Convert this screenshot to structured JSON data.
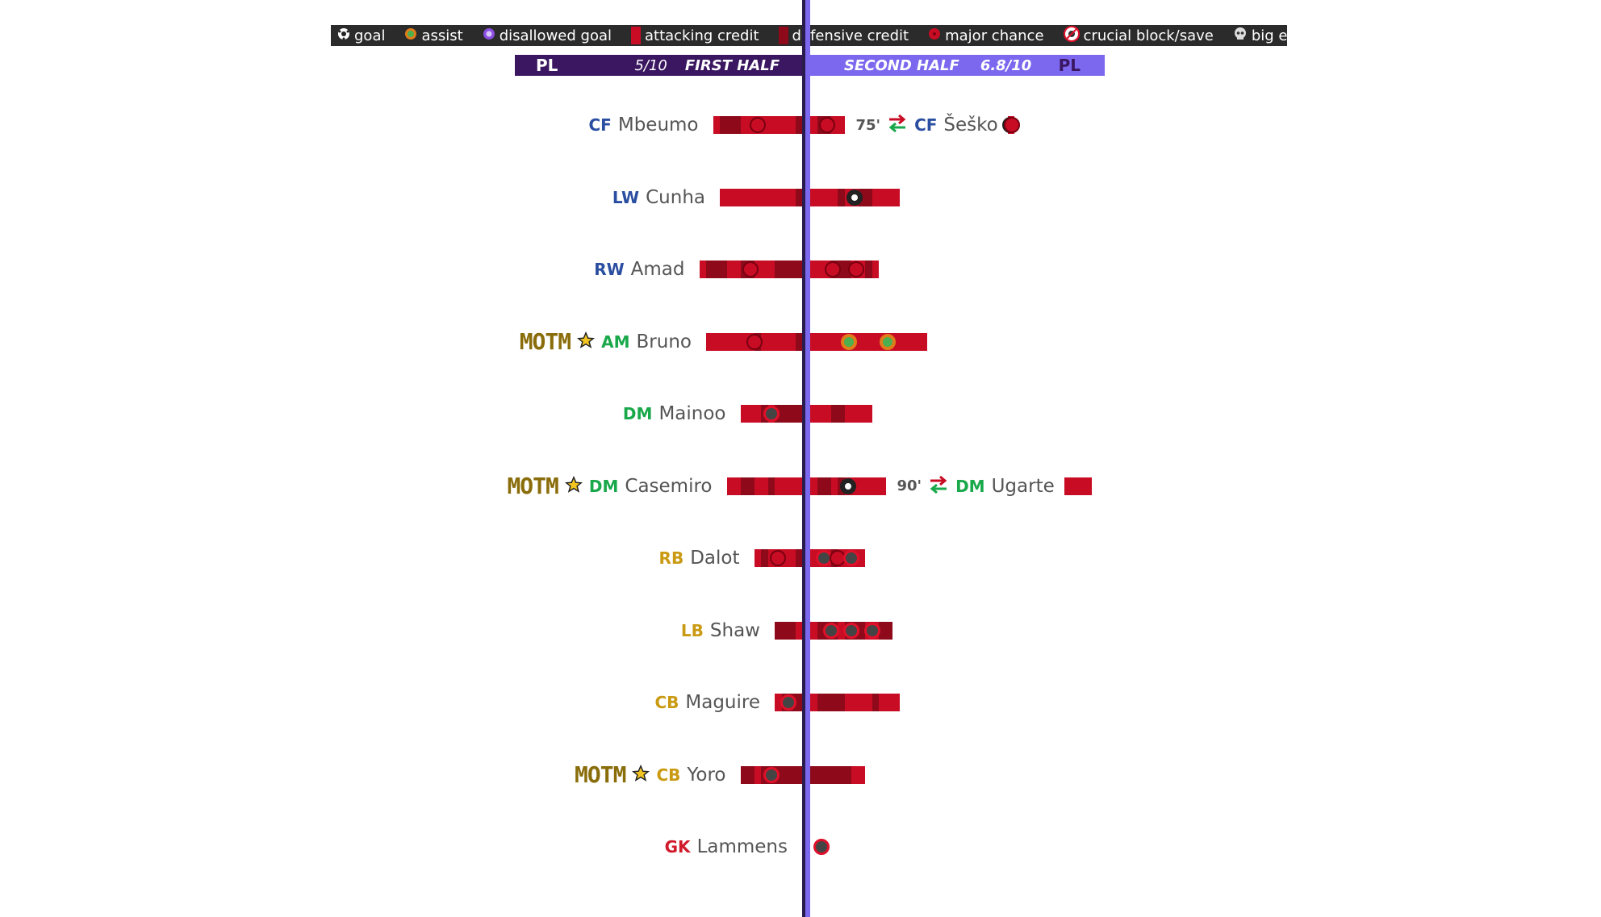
{
  "colors": {
    "attacking": "#c80c24",
    "defensive": "#8e0a1a",
    "header_left": "#3a1760",
    "header_right": "#7b68ee",
    "attack_pos": "#2a4ea0",
    "mid_pos": "#19a84a",
    "def_pos": "#c99a12",
    "gk_pos": "#d11a2a",
    "motm": "#8a6d0b"
  },
  "legend": [
    {
      "icon": "goal-icon",
      "label": "goal"
    },
    {
      "icon": "assist-icon",
      "label": "assist"
    },
    {
      "icon": "disallowed-goal-icon",
      "label": "disallowed goal"
    },
    {
      "icon": "attacking-credit-swatch",
      "label": "attacking credit"
    },
    {
      "icon": "defensive-credit-swatch",
      "label": "defensive credit"
    },
    {
      "icon": "major-chance-icon",
      "label": "major chance"
    },
    {
      "icon": "crucial-block-save-icon",
      "label": "crucial block/save"
    },
    {
      "icon": "big-error-icon",
      "label": "big error"
    }
  ],
  "header": {
    "left_comp": "PL",
    "left_rating": "5/10",
    "left_title": "FIRST HALF",
    "right_title": "SECOND HALF",
    "right_rating": "6.8/10",
    "right_comp": "PL"
  },
  "motm_label": "MOTM",
  "chart_data": {
    "type": "bar",
    "title": "",
    "halves": [
      "FIRST HALF",
      "SECOND HALF"
    ],
    "segment_types": [
      "attacking credit",
      "defensive credit"
    ],
    "players": [
      {
        "pos": "CF",
        "group": "attack",
        "name": "Mbeumo",
        "motm": false,
        "first": [
          [
            "d",
            1
          ],
          [
            "a",
            8
          ],
          [
            "d",
            3
          ],
          [
            "a",
            1
          ]
        ],
        "first_events": [
          "major chance"
        ],
        "second": [
          [
            "a",
            1
          ],
          [
            "d",
            2
          ],
          [
            "a",
            2
          ]
        ],
        "second_events": [
          "major chance"
        ],
        "sub": {
          "minute": "75'",
          "pos": "CF",
          "name": "Šeško",
          "bars": [
            [
              "a",
              1
            ]
          ],
          "events": [
            "goal",
            "major chance"
          ]
        }
      },
      {
        "pos": "LW",
        "group": "attack",
        "name": "Cunha",
        "motm": false,
        "first": [
          [
            "d",
            1
          ],
          [
            "a",
            1
          ],
          [
            "a",
            10
          ]
        ],
        "first_events": [],
        "second": [
          [
            "a",
            1
          ],
          [
            "a",
            3
          ],
          [
            "d",
            1
          ],
          [
            "a",
            2
          ],
          [
            "d",
            2
          ],
          [
            "a",
            4
          ]
        ],
        "second_events": [
          "goal"
        ],
        "sub": null
      },
      {
        "pos": "RW",
        "group": "attack",
        "name": "Amad",
        "motm": false,
        "first": [
          [
            "d",
            4
          ],
          [
            "a",
            3
          ],
          [
            "d",
            2
          ],
          [
            "a",
            2
          ],
          [
            "d",
            3
          ],
          [
            "a",
            1
          ]
        ],
        "first_events": [
          "major chance"
        ],
        "second": [
          [
            "a",
            3
          ],
          [
            "d",
            3
          ],
          [
            "a",
            2
          ],
          [
            "d",
            1
          ],
          [
            "a",
            1
          ]
        ],
        "second_events": [
          "major chance",
          "major chance"
        ],
        "sub": null
      },
      {
        "pos": "AM",
        "group": "mid",
        "name": "Bruno",
        "motm": true,
        "first": [
          [
            "d",
            1
          ],
          [
            "a",
            5
          ],
          [
            "d",
            1
          ],
          [
            "a",
            7
          ]
        ],
        "first_events": [
          "major chance"
        ],
        "second": [
          [
            "a",
            5
          ],
          [
            "a",
            6
          ],
          [
            "a",
            6
          ]
        ],
        "second_events": [
          "assist",
          "assist"
        ],
        "sub": null
      },
      {
        "pos": "DM",
        "group": "mid",
        "name": "Mainoo",
        "motm": false,
        "first": [
          [
            "d",
            4
          ],
          [
            "a",
            1
          ],
          [
            "d",
            1
          ],
          [
            "a",
            3
          ]
        ],
        "first_events": [
          "crucial block/save"
        ],
        "second": [
          [
            "a",
            3
          ],
          [
            "d",
            2
          ],
          [
            "a",
            4
          ]
        ],
        "second_events": [],
        "sub": null
      },
      {
        "pos": "DM",
        "group": "mid",
        "name": "Casemiro",
        "motm": true,
        "first": [
          [
            "a",
            4
          ],
          [
            "d",
            1
          ],
          [
            "a",
            2
          ],
          [
            "d",
            2
          ],
          [
            "a",
            2
          ]
        ],
        "first_events": [],
        "second": [
          [
            "a",
            1
          ],
          [
            "d",
            2
          ],
          [
            "a",
            1
          ],
          [
            "d",
            1
          ],
          [
            "a",
            6
          ]
        ],
        "second_events": [
          "goal"
        ],
        "sub": {
          "minute": "90'",
          "pos": "DM",
          "name": "Ugarte",
          "bars": [
            [
              "a",
              4
            ]
          ],
          "events": []
        }
      },
      {
        "pos": "RB",
        "group": "def",
        "name": "Dalot",
        "motm": false,
        "first": [
          [
            "d",
            1
          ],
          [
            "a",
            4
          ],
          [
            "d",
            1
          ],
          [
            "a",
            1
          ]
        ],
        "first_events": [
          "major chance"
        ],
        "second": [
          [
            "a",
            1
          ],
          [
            "a",
            2
          ],
          [
            "d",
            1
          ],
          [
            "a",
            4
          ]
        ],
        "second_events": [
          "crucial block/save",
          "major chance",
          "crucial block/save"
        ],
        "sub": null
      },
      {
        "pos": "LB",
        "group": "def",
        "name": "Shaw",
        "motm": false,
        "first": [
          [
            "a",
            1
          ],
          [
            "d",
            3
          ]
        ],
        "first_events": [],
        "second": [
          [
            "a",
            1
          ],
          [
            "d",
            3
          ],
          [
            "a",
            1
          ],
          [
            "d",
            3
          ],
          [
            "a",
            2
          ],
          [
            "d",
            2
          ]
        ],
        "second_events": [
          "crucial block/save",
          "crucial block/save",
          "crucial block/save"
        ],
        "sub": null
      },
      {
        "pos": "CB",
        "group": "def",
        "name": "Maguire",
        "motm": false,
        "first": [
          [
            "d",
            3
          ],
          [
            "a",
            1
          ]
        ],
        "first_events": [
          "crucial block/save"
        ],
        "second": [
          [
            "a",
            1
          ],
          [
            "d",
            4
          ],
          [
            "a",
            4
          ],
          [
            "d",
            1
          ],
          [
            "a",
            3
          ]
        ],
        "second_events": [],
        "sub": null
      },
      {
        "pos": "CB",
        "group": "def",
        "name": "Yoro",
        "motm": true,
        "first": [
          [
            "d",
            6
          ],
          [
            "a",
            1
          ],
          [
            "d",
            2
          ]
        ],
        "first_events": [
          "crucial block/save"
        ],
        "second": [
          [
            "d",
            6
          ],
          [
            "a",
            2
          ]
        ],
        "second_events": [],
        "sub": null
      },
      {
        "pos": "GK",
        "group": "gk",
        "name": "Lammens",
        "motm": false,
        "first": [],
        "first_events": [],
        "second": [],
        "second_events": [
          "crucial block/save"
        ],
        "sub": null
      }
    ]
  }
}
